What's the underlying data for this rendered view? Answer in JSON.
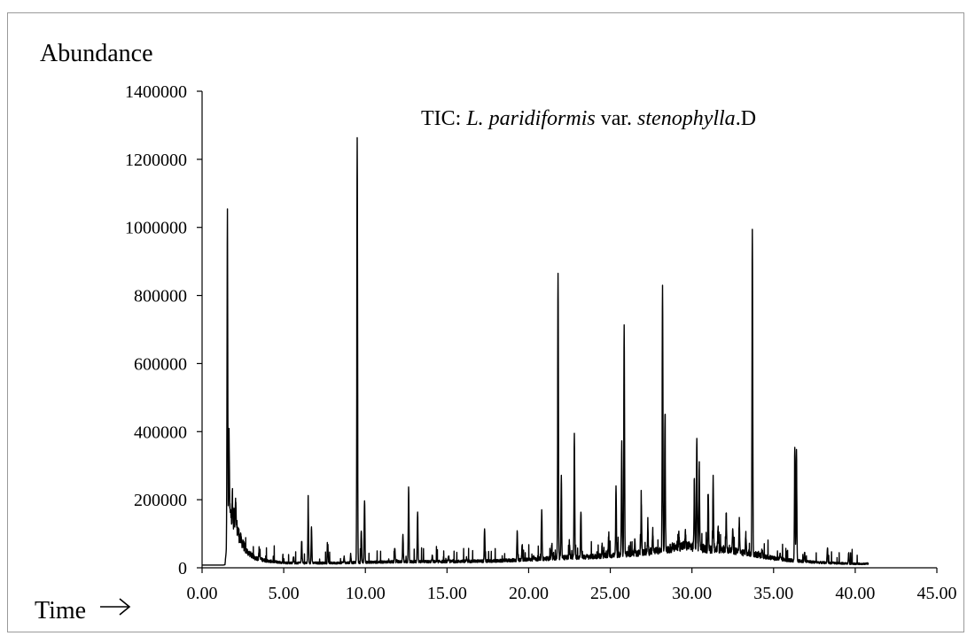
{
  "chart_data": {
    "type": "line",
    "ylabel": "Abundance",
    "xlabel": "Time",
    "title": "",
    "annotation": {
      "prefix": "TIC: ",
      "species_genus": "L. paridiformis",
      "var_text": " var. ",
      "species_var": "stenophylla",
      "suffix": ".D"
    },
    "xlim": [
      0,
      45
    ],
    "ylim": [
      0,
      1400000
    ],
    "x_ticks": [
      "0.00",
      "5.00",
      "10.00",
      "15.00",
      "20.00",
      "25.00",
      "30.00",
      "35.00",
      "40.00",
      "45.00"
    ],
    "y_ticks": [
      "0",
      "200000",
      "400000",
      "600000",
      "800000",
      "1000000",
      "1200000",
      "1400000"
    ],
    "grid": false,
    "line_color": "#000000",
    "run_range": [
      0.0,
      40.8
    ],
    "baseline_points": [
      [
        0.0,
        8000
      ],
      [
        1.3,
        8000
      ],
      [
        1.4,
        9000
      ],
      [
        1.7,
        160000
      ],
      [
        2.0,
        140000
      ],
      [
        2.3,
        90000
      ],
      [
        2.7,
        50000
      ],
      [
        3.2,
        30000
      ],
      [
        4.0,
        20000
      ],
      [
        5.0,
        15000
      ],
      [
        6.0,
        14000
      ],
      [
        8.0,
        14000
      ],
      [
        10.0,
        16000
      ],
      [
        12.0,
        18000
      ],
      [
        14.0,
        18000
      ],
      [
        16.0,
        19000
      ],
      [
        18.0,
        20000
      ],
      [
        20.0,
        24000
      ],
      [
        22.0,
        30000
      ],
      [
        24.0,
        33000
      ],
      [
        26.0,
        40000
      ],
      [
        28.0,
        50000
      ],
      [
        29.5,
        65000
      ],
      [
        30.0,
        62000
      ],
      [
        31.0,
        55000
      ],
      [
        32.0,
        55000
      ],
      [
        33.0,
        45000
      ],
      [
        34.0,
        38000
      ],
      [
        35.0,
        28000
      ],
      [
        36.0,
        22000
      ],
      [
        38.0,
        15000
      ],
      [
        40.0,
        12000
      ],
      [
        40.8,
        12000
      ]
    ],
    "peaks": [
      [
        1.55,
        1045000
      ],
      [
        1.65,
        390000
      ],
      [
        1.85,
        200000
      ],
      [
        2.05,
        210000
      ],
      [
        3.5,
        60000
      ],
      [
        5.6,
        35000
      ],
      [
        6.1,
        80000
      ],
      [
        6.5,
        175000
      ],
      [
        6.7,
        120000
      ],
      [
        7.7,
        65000
      ],
      [
        8.7,
        30000
      ],
      [
        9.1,
        40000
      ],
      [
        9.5,
        1265000
      ],
      [
        9.75,
        110000
      ],
      [
        9.95,
        200000
      ],
      [
        11.8,
        60000
      ],
      [
        12.3,
        95000
      ],
      [
        12.65,
        240000
      ],
      [
        13.2,
        165000
      ],
      [
        14.1,
        35000
      ],
      [
        15.1,
        35000
      ],
      [
        16.2,
        30000
      ],
      [
        17.3,
        112000
      ],
      [
        19.3,
        108000
      ],
      [
        19.6,
        70000
      ],
      [
        20.3,
        40000
      ],
      [
        20.8,
        165000
      ],
      [
        21.4,
        55000
      ],
      [
        21.8,
        865000
      ],
      [
        22.0,
        265000
      ],
      [
        22.5,
        70000
      ],
      [
        22.8,
        390000
      ],
      [
        23.2,
        170000
      ],
      [
        24.5,
        70000
      ],
      [
        24.9,
        90000
      ],
      [
        25.35,
        235000
      ],
      [
        25.7,
        370000
      ],
      [
        25.85,
        705000
      ],
      [
        26.5,
        80000
      ],
      [
        26.9,
        195000
      ],
      [
        27.3,
        115000
      ],
      [
        27.6,
        110000
      ],
      [
        28.2,
        830000
      ],
      [
        28.35,
        450000
      ],
      [
        29.2,
        95000
      ],
      [
        29.6,
        100000
      ],
      [
        30.15,
        270000
      ],
      [
        30.3,
        390000
      ],
      [
        30.45,
        300000
      ],
      [
        31.0,
        215000
      ],
      [
        31.3,
        250000
      ],
      [
        31.6,
        120000
      ],
      [
        32.1,
        160000
      ],
      [
        32.5,
        120000
      ],
      [
        32.9,
        140000
      ],
      [
        33.3,
        100000
      ],
      [
        33.7,
        995000
      ],
      [
        34.3,
        50000
      ],
      [
        35.4,
        40000
      ],
      [
        36.3,
        355000
      ],
      [
        36.4,
        350000
      ],
      [
        36.9,
        45000
      ],
      [
        38.3,
        60000
      ],
      [
        39.6,
        45000
      ]
    ]
  }
}
